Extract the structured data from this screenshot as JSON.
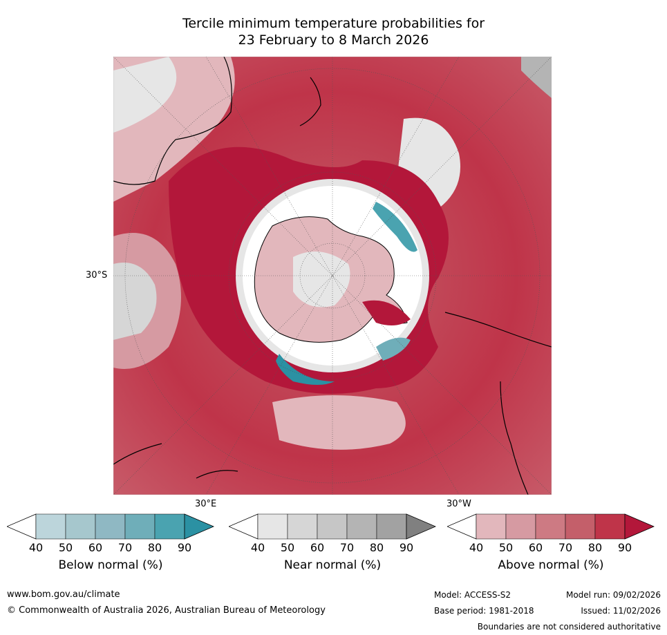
{
  "title": {
    "line1": "Tercile minimum temperature probabilities for",
    "line2": "23 February to 8 March 2026"
  },
  "map": {
    "projection": "south polar stereographic",
    "labels": {
      "lat_30s": "30°S",
      "lon_30e": "30°E",
      "lon_30w": "30°W"
    }
  },
  "colorbars": [
    {
      "id": "below",
      "label": "Below normal (%)",
      "ticks": [
        "40",
        "50",
        "60",
        "70",
        "80",
        "90"
      ],
      "colors": [
        "#ffffff",
        "#bcd5db",
        "#a6c7cd",
        "#8fb8c3",
        "#6faeb9",
        "#4aa3b0",
        "#2b91a3"
      ]
    },
    {
      "id": "near",
      "label": "Near normal (%)",
      "ticks": [
        "40",
        "50",
        "60",
        "70",
        "80",
        "90"
      ],
      "colors": [
        "#ffffff",
        "#e6e6e6",
        "#d6d6d6",
        "#c6c6c6",
        "#b4b4b4",
        "#a2a2a2",
        "#808080"
      ]
    },
    {
      "id": "above",
      "label": "Above normal (%)",
      "ticks": [
        "40",
        "50",
        "60",
        "70",
        "80",
        "90"
      ],
      "colors": [
        "#ffffff",
        "#e2b7bc",
        "#d69aa2",
        "#cd7a83",
        "#c45f6a",
        "#bf3449",
        "#b3173a"
      ]
    }
  ],
  "footer": {
    "website": "www.bom.gov.au/climate",
    "copyright": "© Commonwealth of Australia 2026, Australian Bureau of Meteorology",
    "model": "Model: ACCESS-S2",
    "model_run": "Model run: 09/02/2026",
    "base_period": "Base period: 1981-2018",
    "issued": "Issued: 11/02/2026",
    "disclaimer": "Boundaries are not considered authoritative"
  }
}
